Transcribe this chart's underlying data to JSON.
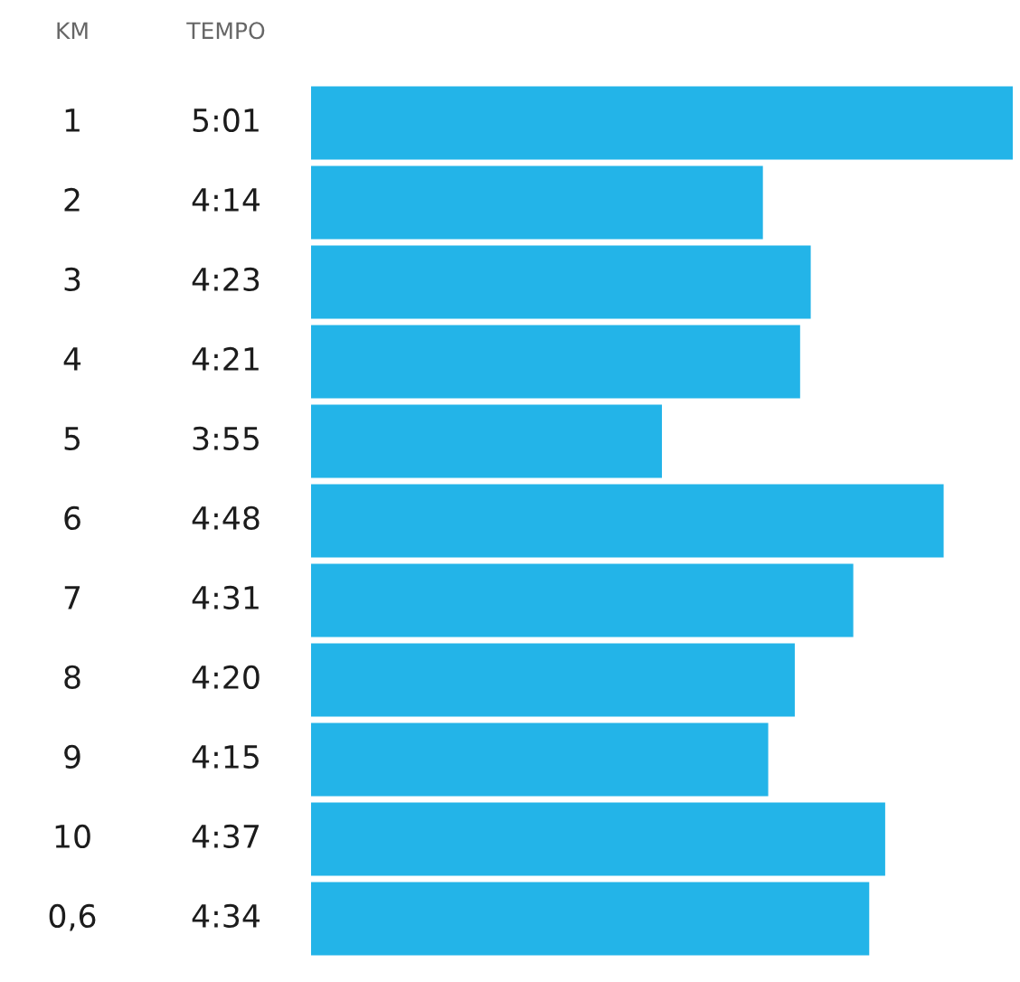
{
  "chart_data": {
    "type": "bar",
    "orientation": "horizontal",
    "ylabel": "KM",
    "xlabel": "TEMPO",
    "categories": [
      "1",
      "2",
      "3",
      "4",
      "5",
      "6",
      "7",
      "8",
      "9",
      "10",
      "0,6"
    ],
    "values": [
      5.0167,
      4.2333,
      4.3833,
      4.35,
      3.9167,
      4.8,
      4.5167,
      4.3333,
      4.25,
      4.6167,
      4.5667
    ],
    "value_labels": [
      "5:01",
      "4:14",
      "4:23",
      "4:21",
      "3:55",
      "4:48",
      "4:31",
      "4:20",
      "4:15",
      "4:37",
      "4:34"
    ],
    "color": "#23b4e8"
  }
}
